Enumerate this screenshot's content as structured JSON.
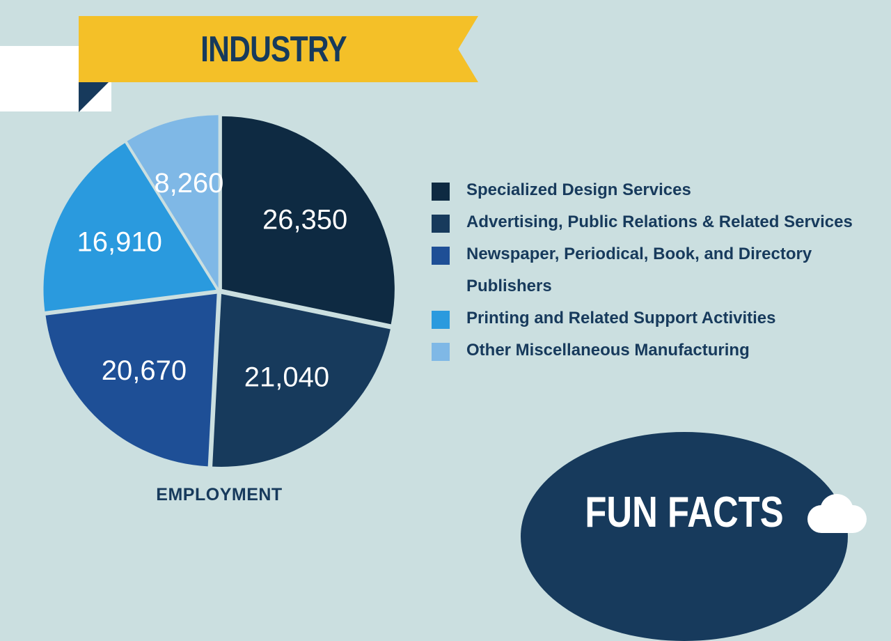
{
  "banner": {
    "title": "INDUSTRY"
  },
  "chart_data": {
    "type": "pie",
    "title": "INDUSTRY",
    "caption": "EMPLOYMENT",
    "categories": [
      "Specialized Design Services",
      "Advertising, Public Relations & Related Services",
      "Newspaper, Periodical, Book, and Directory Publishers",
      "Printing and Related Support Activities",
      "Other Miscellaneous Manufacturing"
    ],
    "values": [
      26350,
      21040,
      20670,
      16910,
      8260
    ],
    "value_labels": [
      "26,350",
      "21,040",
      "20,670",
      "16,910",
      "8,260"
    ],
    "colors": [
      "#0e2a42",
      "#173a5c",
      "#1e4f96",
      "#2a9ade",
      "#7fb8e6"
    ],
    "legend_placement": "right"
  },
  "legend": {
    "items": [
      {
        "label": "Specialized Design Services",
        "color": "#0e2a42"
      },
      {
        "label": "Advertising, Public Relations & Related Services",
        "color": "#173a5c"
      },
      {
        "label": "Newspaper, Periodical, Book, and Directory Publishers",
        "color": "#1e4f96"
      },
      {
        "label": "Printing and Related Support Activities",
        "color": "#2a9ade"
      },
      {
        "label": "Other Miscellaneous Manufacturing",
        "color": "#7fb8e6"
      }
    ]
  },
  "funfacts": {
    "title": "FUN FACTS",
    "icon": "cloud-icon"
  }
}
